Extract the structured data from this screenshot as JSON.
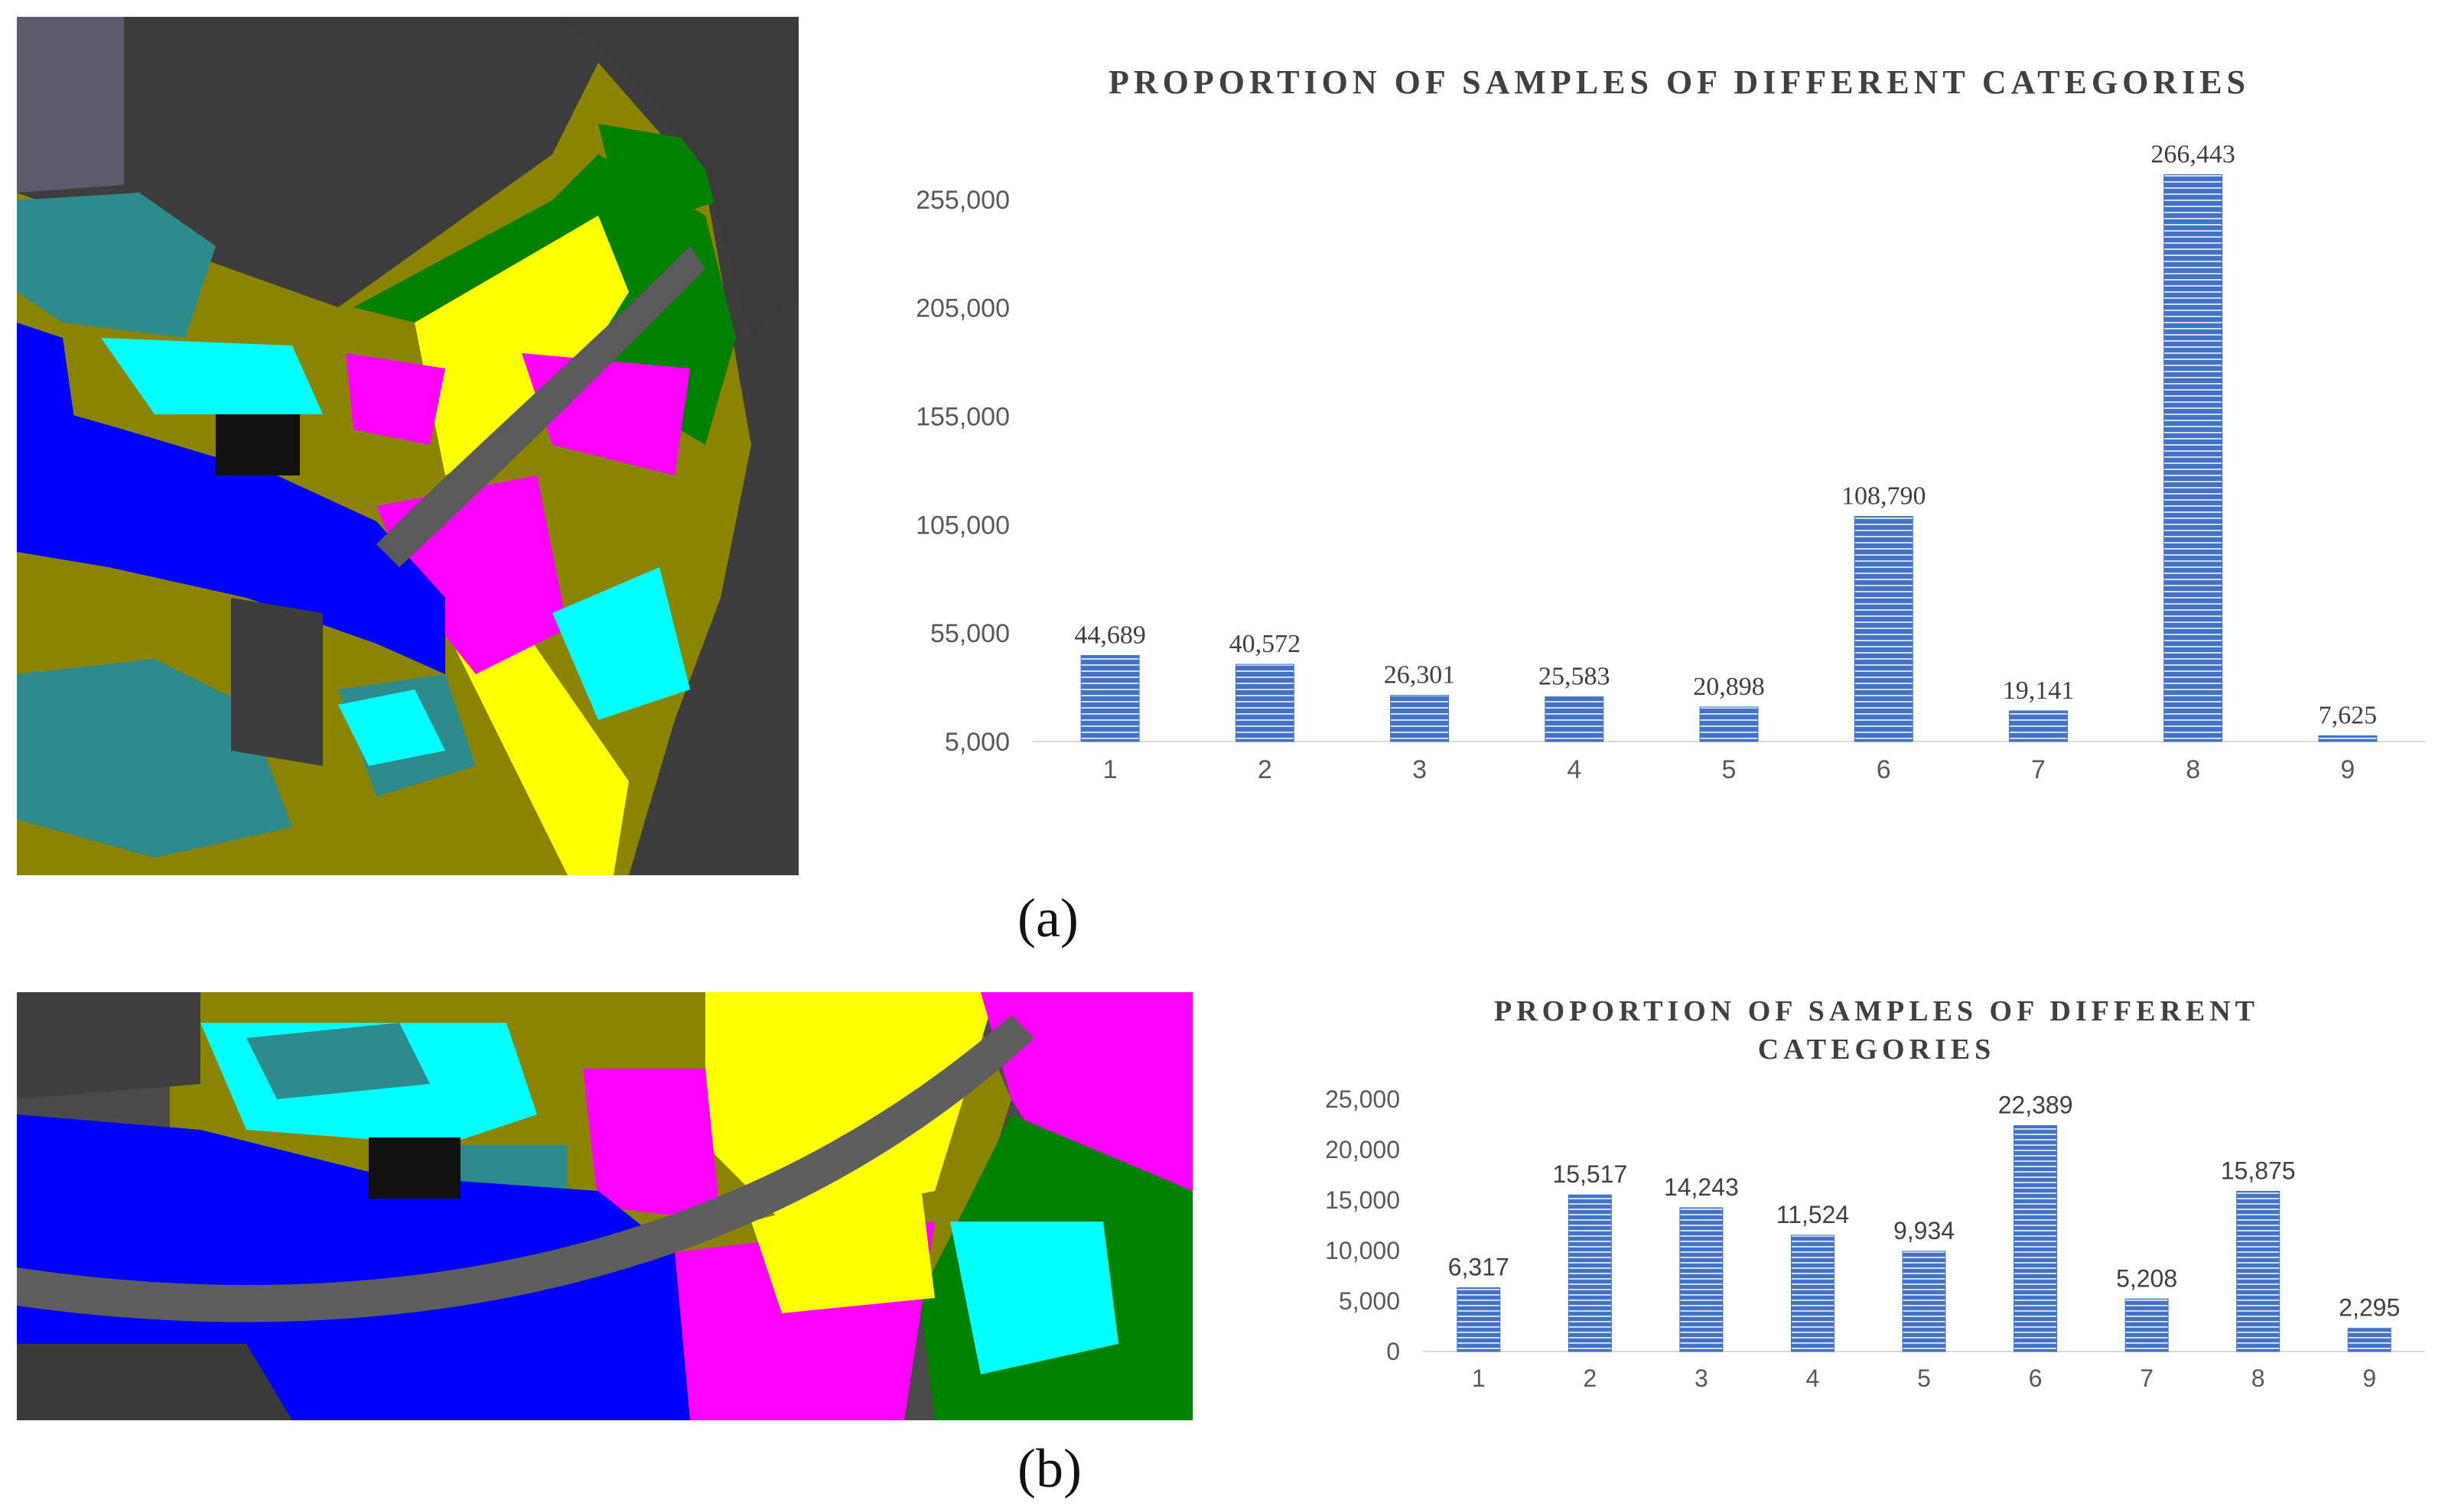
{
  "panels": {
    "a": {
      "label": "(a)"
    },
    "b": {
      "label": "(b)"
    }
  },
  "colors": {
    "bar": "#4472c4",
    "bar_stripe": "#ffffff",
    "map_water": "#0000ff",
    "map_olive": "#8a8400",
    "map_yellow": "#ffff00",
    "map_magenta": "#ff00ff",
    "map_cyan": "#00ffff",
    "map_teal": "#2e8b8b",
    "map_green": "#008000",
    "map_gray": "#4a4a4a"
  },
  "chart_data": [
    {
      "type": "bar",
      "title": "PROPORTION OF SAMPLES OF DIFFERENT CATEGORIES",
      "categories": [
        "1",
        "2",
        "3",
        "4",
        "5",
        "6",
        "7",
        "8",
        "9"
      ],
      "values": [
        44689,
        40572,
        26301,
        25583,
        20898,
        108790,
        19141,
        266443,
        7625
      ],
      "value_labels": [
        "44,689",
        "40,572",
        "26,301",
        "25,583",
        "20,898",
        "108,790",
        "19,141",
        "266,443",
        "7,625"
      ],
      "ylim": [
        5000,
        280000
      ],
      "yticks": [
        5000,
        55000,
        105000,
        155000,
        205000,
        255000
      ],
      "ytick_labels": [
        "5,000",
        "55,000",
        "105,000",
        "155,000",
        "205,000",
        "255,000"
      ],
      "xlabel": "",
      "ylabel": "",
      "grid": false
    },
    {
      "type": "bar",
      "title": [
        "PROPORTION OF SAMPLES OF DIFFERENT",
        "CATEGORIES"
      ],
      "categories": [
        "1",
        "2",
        "3",
        "4",
        "5",
        "6",
        "7",
        "8",
        "9"
      ],
      "values": [
        6317,
        15517,
        14243,
        11524,
        9934,
        22389,
        5208,
        15875,
        2295
      ],
      "value_labels": [
        "6,317",
        "15,517",
        "14,243",
        "11,524",
        "9,934",
        "22,389",
        "5,208",
        "15,875",
        "2,295"
      ],
      "ylim": [
        0,
        25000
      ],
      "yticks": [
        0,
        5000,
        10000,
        15000,
        20000,
        25000
      ],
      "ytick_labels": [
        "0",
        "5,000",
        "10,000",
        "15,000",
        "20,000",
        "25,000"
      ],
      "xlabel": "",
      "ylabel": "",
      "grid": false
    }
  ]
}
